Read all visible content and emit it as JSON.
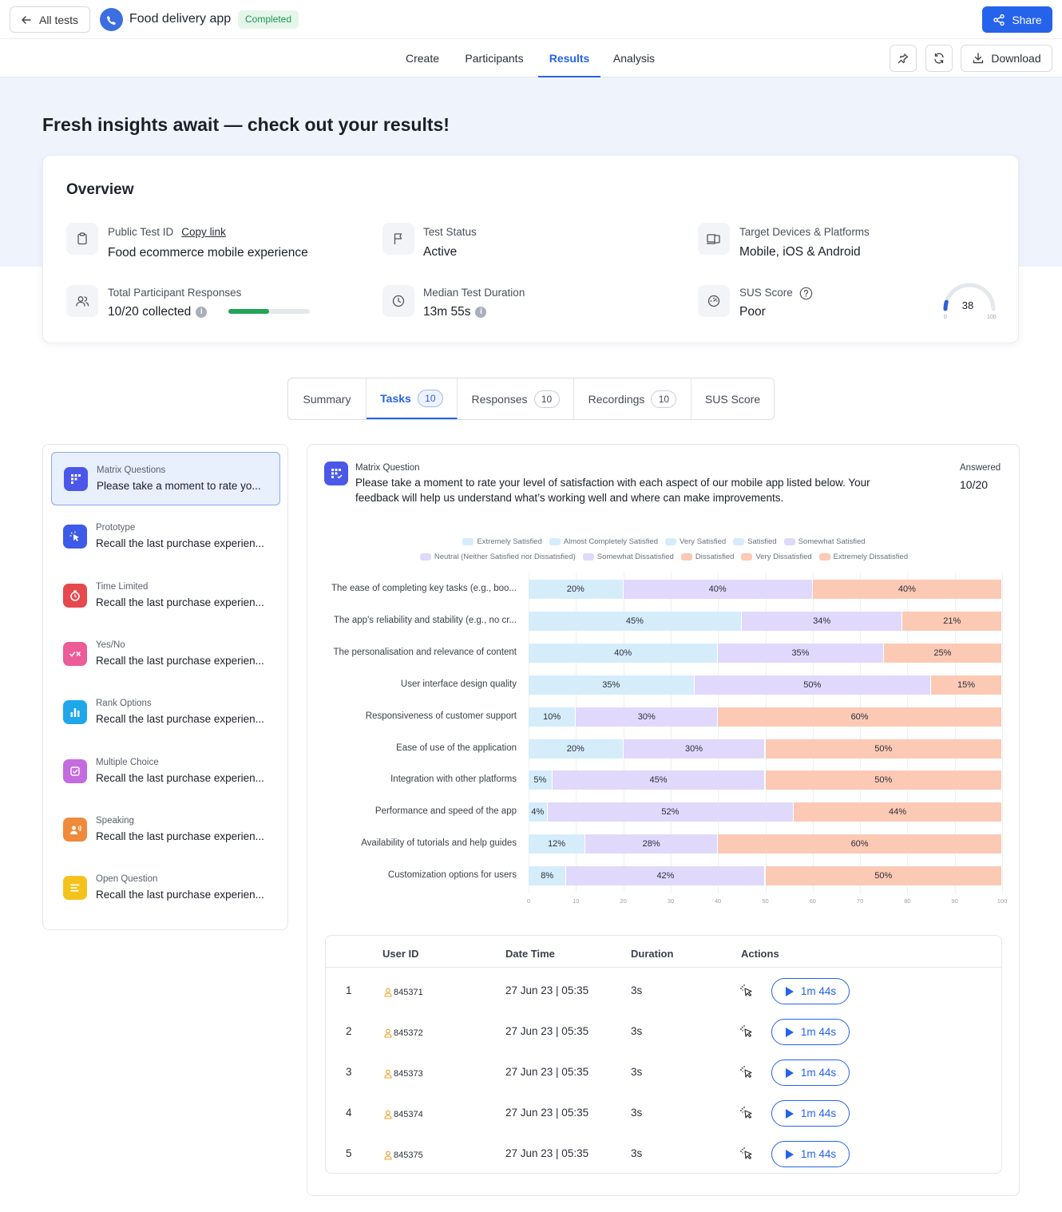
{
  "topbar": {
    "back_label": "All tests",
    "app_name": "Food delivery app",
    "status_badge": "Completed",
    "share_label": "Share"
  },
  "nav": {
    "tabs": [
      "Create",
      "Participants",
      "Results",
      "Analysis"
    ],
    "active_tab": "Results",
    "download_label": "Download"
  },
  "hero": {
    "title": "Fresh insights await — check out your results!"
  },
  "overview": {
    "title": "Overview",
    "public_test_id_label": "Public Test ID",
    "copy_link": "Copy link",
    "public_test_id_value": "Food ecommerce mobile experience",
    "test_status_label": "Test Status",
    "test_status_value": "Active",
    "target_label": "Target Devices & Platforms",
    "target_value": "Mobile, iOS & Android",
    "responses_label": "Total Participant Responses",
    "responses_value": "10/20 collected",
    "responses_progress": 0.5,
    "duration_label": "Median Test Duration",
    "duration_value": "13m 55s",
    "sus_label": "SUS Score",
    "sus_value": "Poor",
    "sus_score": "38",
    "sus_min": "0",
    "sus_max": "100"
  },
  "subtabs": [
    {
      "label": "Summary",
      "count": ""
    },
    {
      "label": "Tasks",
      "count": "10"
    },
    {
      "label": "Responses",
      "count": "10"
    },
    {
      "label": "Recordings",
      "count": "10"
    },
    {
      "label": "SUS Score",
      "count": ""
    }
  ],
  "tasks": [
    {
      "type": "Matrix Questions",
      "title": "Please take a moment to rate yo...",
      "color": "#4a57e8",
      "icon": "matrix-icon"
    },
    {
      "type": "Prototype",
      "title": "Recall the last purchase experien...",
      "color": "#3d5be8",
      "icon": "prototype-icon"
    },
    {
      "type": "Time Limited",
      "title": "Recall the last purchase experien...",
      "color": "#e5484d",
      "icon": "timer-icon"
    },
    {
      "type": "Yes/No",
      "title": "Recall the last purchase experien...",
      "color": "#ec5c99",
      "icon": "yes-no-icon"
    },
    {
      "type": "Rank Options",
      "title": "Recall the last purchase experien...",
      "color": "#1ea7e9",
      "icon": "rank-icon"
    },
    {
      "type": "Multiple Choice",
      "title": "Recall the last purchase experien...",
      "color": "#c46be0",
      "icon": "multiple-choice-icon"
    },
    {
      "type": "Speaking",
      "title": "Recall the last purchase experien...",
      "color": "#ef8a3a",
      "icon": "speaking-icon"
    },
    {
      "type": "Open Question",
      "title": "Recall the last purchase experien...",
      "color": "#f4c21d",
      "icon": "open-question-icon"
    }
  ],
  "question": {
    "type": "Matrix Question",
    "text": "Please take a moment to rate your level of satisfaction with each aspect of our mobile app listed below. Your feedback will help us understand what’s working well and where can make improvements.",
    "answered_label": "Answered",
    "answered_value": "10/20"
  },
  "chart_data": {
    "type": "bar",
    "orientation": "horizontal-stacked",
    "legend": [
      {
        "name": "Extremely Satisfied",
        "color": "#d5ecfb"
      },
      {
        "name": "Almost Completely Satisfied",
        "color": "#d5ecfb"
      },
      {
        "name": "Very Satisfied",
        "color": "#d5ecfb"
      },
      {
        "name": "Satisfied",
        "color": "#d5ecfb"
      },
      {
        "name": "Somewhat Satisfied",
        "color": "#e0d9fb"
      },
      {
        "name": "Neutral (Neither Satisfied nor Dissatisfied)",
        "color": "#e0d9fb"
      },
      {
        "name": "Somewhat Dissatisfied",
        "color": "#e0d9fb"
      },
      {
        "name": "Dissatisfied",
        "color": "#fcc9b4"
      },
      {
        "name": "Very Dissatisfied",
        "color": "#fcc9b4"
      },
      {
        "name": "Extremely Dissatisfied",
        "color": "#fcc9b4"
      }
    ],
    "segment_colors": [
      "#d5ecfb",
      "#e0d9fb",
      "#fcc9b4"
    ],
    "categories": [
      "The ease of completing key tasks (e.g., boo...",
      "The app's reliability and stability (e.g., no cr...",
      "The personalisation and relevance of content",
      "User interface design quality",
      "Responsiveness of customer support",
      "Ease of use of the application",
      "Integration with other platforms",
      "Performance and speed of the app",
      "Availability of tutorials and help guides",
      "Customization options for users"
    ],
    "values": [
      [
        20,
        40,
        40
      ],
      [
        45,
        34,
        21
      ],
      [
        40,
        35,
        25
      ],
      [
        35,
        50,
        15
      ],
      [
        10,
        30,
        60
      ],
      [
        20,
        30,
        50
      ],
      [
        5,
        45,
        50
      ],
      [
        4,
        52,
        44
      ],
      [
        12,
        28,
        60
      ],
      [
        8,
        42,
        50
      ]
    ],
    "xlim": [
      0,
      100
    ],
    "xticks": [
      "0",
      "10",
      "20",
      "30",
      "40",
      "50",
      "60",
      "70",
      "80",
      "90",
      "100"
    ],
    "grid": true
  },
  "table": {
    "headers": [
      "User ID",
      "Date Time",
      "Duration",
      "Actions"
    ],
    "rows": [
      {
        "index": "1",
        "user": "845371",
        "datetime": "27 Jun 23 | 05:35",
        "duration": "3s",
        "recording": "1m 44s"
      },
      {
        "index": "2",
        "user": "845372",
        "datetime": "27 Jun 23 | 05:35",
        "duration": "3s",
        "recording": "1m 44s"
      },
      {
        "index": "3",
        "user": "845373",
        "datetime": "27 Jun 23 | 05:35",
        "duration": "3s",
        "recording": "1m 44s"
      },
      {
        "index": "4",
        "user": "845374",
        "datetime": "27 Jun 23 | 05:35",
        "duration": "3s",
        "recording": "1m 44s"
      },
      {
        "index": "5",
        "user": "845375",
        "datetime": "27 Jun 23 | 05:35",
        "duration": "3s",
        "recording": "1m 44s"
      }
    ]
  }
}
